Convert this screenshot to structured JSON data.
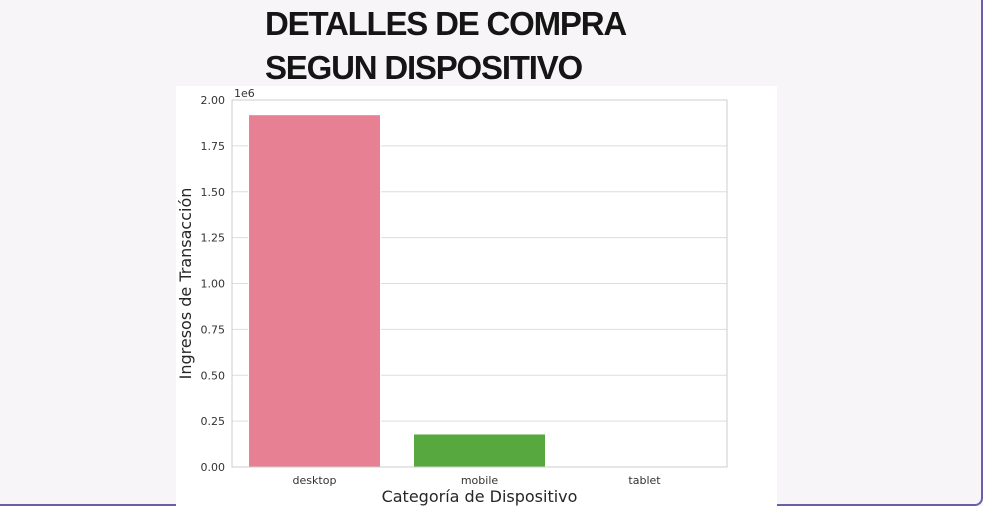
{
  "slide": {
    "title_line1": "DETALLES DE COMPRA",
    "title_line2": "SEGUN DISPOSITIVO"
  },
  "chart_data": {
    "type": "bar",
    "title": "",
    "xlabel": "Categoría de Dispositivo",
    "ylabel": "Ingresos de Transacción",
    "y_scale_label": "1e6",
    "ylim": [
      0,
      2.0
    ],
    "yticks": [
      "0.00",
      "0.25",
      "0.50",
      "0.75",
      "1.00",
      "1.25",
      "1.50",
      "1.75",
      "2.00"
    ],
    "categories": [
      "desktop",
      "mobile",
      "tablet"
    ],
    "values": [
      1.92,
      0.18,
      0
    ],
    "colors": [
      "#e88094",
      "#57a83f",
      "#a9a3e8"
    ],
    "grid": true,
    "legend": "none"
  }
}
